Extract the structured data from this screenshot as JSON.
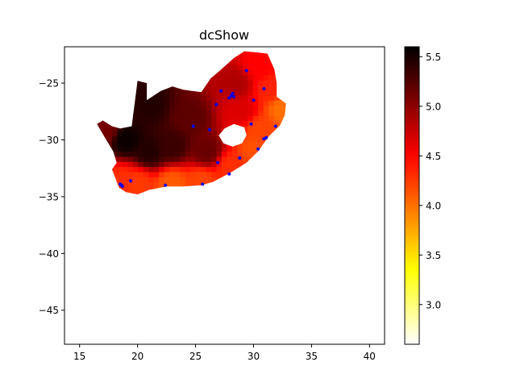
{
  "chart_data": {
    "type": "heatmap",
    "title": "dcShow",
    "xlabel": "",
    "ylabel": "",
    "xlim": [
      13.7,
      41.3
    ],
    "ylim": [
      -48.0,
      -21.8
    ],
    "x_ticks": [
      15,
      20,
      25,
      30,
      35,
      40
    ],
    "y_ticks": [
      -25,
      -30,
      -35,
      -40,
      -45
    ],
    "x_tick_labels": [
      "15",
      "20",
      "25",
      "30",
      "35",
      "40"
    ],
    "y_tick_labels": [
      "−25",
      "−30",
      "−35",
      "−40",
      "−45"
    ],
    "grid": false,
    "colormap": "hot_r",
    "colorbar": {
      "vmin": 2.6,
      "vmax": 5.6,
      "ticks": [
        3.0,
        3.5,
        4.0,
        4.5,
        5.0,
        5.5
      ],
      "tick_labels": [
        "3.0",
        "3.5",
        "4.0",
        "4.5",
        "5.0",
        "5.5"
      ]
    },
    "region": {
      "name": "South Africa",
      "outline": [
        [
          16.5,
          -28.6
        ],
        [
          17.0,
          -28.3
        ],
        [
          17.8,
          -28.8
        ],
        [
          18.5,
          -29.0
        ],
        [
          19.5,
          -28.8
        ],
        [
          20.0,
          -24.8
        ],
        [
          20.8,
          -25.0
        ],
        [
          20.8,
          -26.5
        ],
        [
          22.0,
          -25.7
        ],
        [
          23.0,
          -25.3
        ],
        [
          24.0,
          -25.6
        ],
        [
          25.5,
          -25.8
        ],
        [
          26.3,
          -24.6
        ],
        [
          27.2,
          -23.8
        ],
        [
          28.3,
          -22.8
        ],
        [
          29.2,
          -22.2
        ],
        [
          30.3,
          -22.3
        ],
        [
          31.2,
          -22.4
        ],
        [
          31.8,
          -23.8
        ],
        [
          32.0,
          -25.0
        ],
        [
          32.0,
          -26.2
        ],
        [
          32.8,
          -26.8
        ],
        [
          32.7,
          -27.8
        ],
        [
          32.3,
          -28.7
        ],
        [
          31.3,
          -29.7
        ],
        [
          30.4,
          -31.0
        ],
        [
          29.4,
          -32.0
        ],
        [
          28.0,
          -32.9
        ],
        [
          26.5,
          -33.7
        ],
        [
          25.5,
          -34.0
        ],
        [
          24.0,
          -34.1
        ],
        [
          22.5,
          -34.1
        ],
        [
          21.0,
          -34.4
        ],
        [
          20.0,
          -34.8
        ],
        [
          19.0,
          -34.6
        ],
        [
          18.4,
          -34.2
        ],
        [
          18.1,
          -33.4
        ],
        [
          17.8,
          -32.6
        ],
        [
          18.2,
          -32.0
        ],
        [
          17.9,
          -31.0
        ],
        [
          17.3,
          -30.0
        ]
      ],
      "hole": [
        [
          27.0,
          -29.6
        ],
        [
          27.5,
          -29.0
        ],
        [
          28.3,
          -28.6
        ],
        [
          29.2,
          -28.9
        ],
        [
          29.4,
          -29.6
        ],
        [
          29.0,
          -30.3
        ],
        [
          28.2,
          -30.6
        ],
        [
          27.4,
          -30.3
        ]
      ]
    },
    "field_samples": [
      {
        "x": 19.0,
        "y": -30.0,
        "v": 5.55
      },
      {
        "x": 21.0,
        "y": -31.0,
        "v": 5.45
      },
      {
        "x": 23.0,
        "y": -30.5,
        "v": 5.35
      },
      {
        "x": 21.0,
        "y": -27.0,
        "v": 5.45
      },
      {
        "x": 24.5,
        "y": -28.0,
        "v": 5.2
      },
      {
        "x": 26.0,
        "y": -31.0,
        "v": 5.15
      },
      {
        "x": 28.5,
        "y": -25.0,
        "v": 4.85
      },
      {
        "x": 29.0,
        "y": -27.5,
        "v": 4.65
      },
      {
        "x": 30.5,
        "y": -23.5,
        "v": 4.5
      },
      {
        "x": 30.5,
        "y": -29.0,
        "v": 4.2
      },
      {
        "x": 31.5,
        "y": -25.5,
        "v": 4.35
      },
      {
        "x": 32.5,
        "y": -27.2,
        "v": 4.0
      },
      {
        "x": 20.0,
        "y": -33.8,
        "v": 4.25
      },
      {
        "x": 23.0,
        "y": -33.8,
        "v": 4.1
      },
      {
        "x": 25.5,
        "y": -33.6,
        "v": 4.2
      },
      {
        "x": 18.5,
        "y": -33.5,
        "v": 4.3
      },
      {
        "x": 28.0,
        "y": -32.3,
        "v": 4.3
      },
      {
        "x": 30.0,
        "y": -30.8,
        "v": 4.15
      },
      {
        "x": 17.2,
        "y": -29.2,
        "v": 5.1
      }
    ],
    "stations": {
      "color": "#0000ee",
      "points": [
        [
          18.5,
          -33.9
        ],
        [
          18.7,
          -34.1
        ],
        [
          18.6,
          -34.0
        ],
        [
          19.4,
          -33.6
        ],
        [
          22.4,
          -34.0
        ],
        [
          25.6,
          -33.9
        ],
        [
          27.9,
          -33.0
        ],
        [
          26.9,
          -32.0
        ],
        [
          28.8,
          -31.6
        ],
        [
          30.4,
          -30.8
        ],
        [
          30.9,
          -29.9
        ],
        [
          31.1,
          -29.8
        ],
        [
          31.9,
          -28.8
        ],
        [
          29.8,
          -28.6
        ],
        [
          26.2,
          -29.1
        ],
        [
          24.8,
          -28.8
        ],
        [
          26.8,
          -26.9
        ],
        [
          27.2,
          -25.7
        ],
        [
          27.9,
          -26.3
        ],
        [
          28.1,
          -26.1
        ],
        [
          28.2,
          -25.9
        ],
        [
          28.3,
          -26.2
        ],
        [
          29.4,
          -23.9
        ],
        [
          30.0,
          -26.5
        ],
        [
          30.9,
          -25.5
        ]
      ]
    }
  }
}
